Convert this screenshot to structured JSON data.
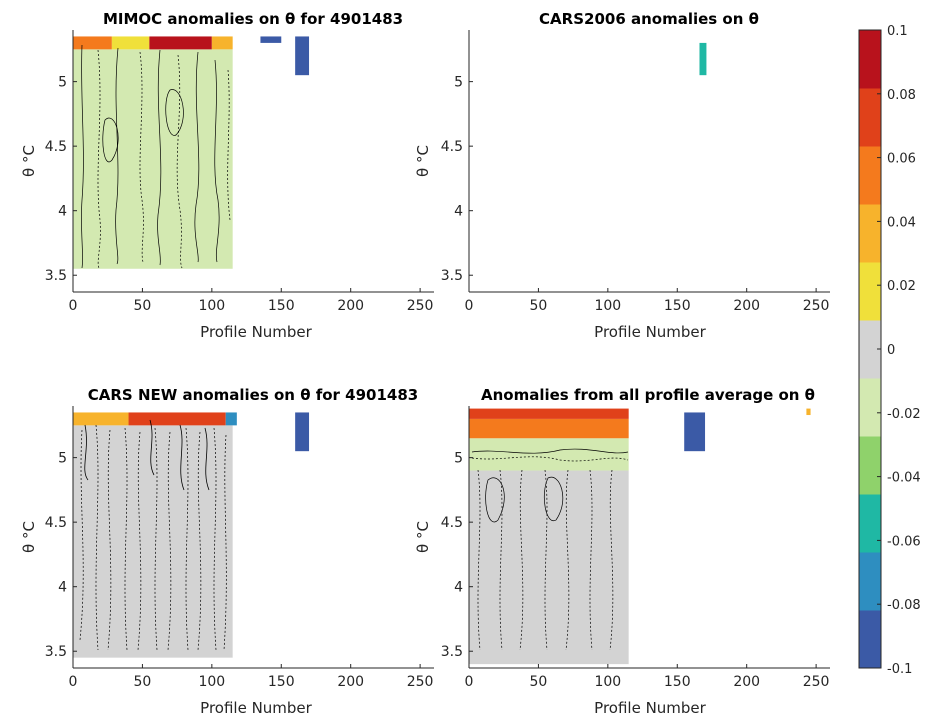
{
  "figure": {
    "panels": [
      {
        "id": "mimoc",
        "title": "MIMOC anomalies on θ  for 4901483",
        "xlabel": "Profile Number",
        "ylabel": "θ °C"
      },
      {
        "id": "cars2006",
        "title": "CARS2006 anomalies on θ",
        "xlabel": "Profile Number",
        "ylabel": "θ °C"
      },
      {
        "id": "carsnew",
        "title": "CARS NEW anomalies on θ for 4901483",
        "xlabel": "Profile Number",
        "ylabel": "θ °C"
      },
      {
        "id": "allavg",
        "title": "Anomalies from all profile average on θ",
        "xlabel": "Profile Number",
        "ylabel": "θ °C"
      }
    ],
    "colorbar": {
      "ticks": [
        "0.1",
        "0.08",
        "0.06",
        "0.04",
        "0.02",
        "0",
        "-0.02",
        "-0.04",
        "-0.06",
        "-0.08",
        "-0.1"
      ],
      "range": [
        -0.1,
        0.1
      ],
      "colors": [
        "#3b5aa6",
        "#2e8ec0",
        "#1fb8a4",
        "#8fd26b",
        "#d3e9b1",
        "#d3d3d3",
        "#f0e03a",
        "#f7b32c",
        "#f47a1d",
        "#e0411a",
        "#b8121c"
      ]
    }
  },
  "chart_data": [
    {
      "type": "heatmap",
      "title": "MIMOC anomalies on θ  for 4901483",
      "xlabel": "Profile Number",
      "ylabel": "θ °C",
      "xlim": [
        0,
        260
      ],
      "ylim": [
        3.37,
        5.4
      ],
      "xticks": [
        0,
        50,
        100,
        150,
        200,
        250
      ],
      "yticks": [
        3.5,
        4,
        4.5,
        5
      ],
      "clim": [
        -0.1,
        0.1
      ],
      "cells": [
        {
          "x": [
            0,
            115
          ],
          "y": [
            3.55,
            5.25
          ],
          "v": -0.012
        },
        {
          "x": [
            0,
            28
          ],
          "y": [
            5.25,
            5.35
          ],
          "v": 0.06
        },
        {
          "x": [
            28,
            55
          ],
          "y": [
            5.25,
            5.35
          ],
          "v": 0.02
        },
        {
          "x": [
            55,
            100
          ],
          "y": [
            5.25,
            5.35
          ],
          "v": 0.085
        },
        {
          "x": [
            100,
            115
          ],
          "y": [
            5.25,
            5.35
          ],
          "v": 0.03
        },
        {
          "x": [
            135,
            150
          ],
          "y": [
            5.3,
            5.35
          ],
          "v": -0.09
        },
        {
          "x": [
            160,
            170
          ],
          "y": [
            5.05,
            5.35
          ],
          "v": -0.09
        }
      ]
    },
    {
      "type": "heatmap",
      "title": "CARS2006 anomalies on θ",
      "xlabel": "Profile Number",
      "ylabel": "θ °C",
      "xlim": [
        0,
        260
      ],
      "ylim": [
        3.37,
        5.4
      ],
      "xticks": [
        0,
        50,
        100,
        150,
        200,
        250
      ],
      "yticks": [
        3.5,
        4,
        4.5,
        5
      ],
      "clim": [
        -0.1,
        0.1
      ],
      "cells": [
        {
          "x": [
            166,
            171
          ],
          "y": [
            5.05,
            5.3
          ],
          "v": -0.05
        }
      ]
    },
    {
      "type": "heatmap",
      "title": "CARS NEW anomalies on θ for 4901483",
      "xlabel": "Profile Number",
      "ylabel": "θ °C",
      "xlim": [
        0,
        260
      ],
      "ylim": [
        3.37,
        5.4
      ],
      "xticks": [
        0,
        50,
        100,
        150,
        200,
        250
      ],
      "yticks": [
        3.5,
        4,
        4.5,
        5
      ],
      "clim": [
        -0.1,
        0.1
      ],
      "cells": [
        {
          "x": [
            0,
            115
          ],
          "y": [
            3.45,
            5.25
          ],
          "v": 0.0
        },
        {
          "x": [
            0,
            40
          ],
          "y": [
            5.25,
            5.35
          ],
          "v": 0.04
        },
        {
          "x": [
            40,
            110
          ],
          "y": [
            5.25,
            5.35
          ],
          "v": 0.08
        },
        {
          "x": [
            110,
            118
          ],
          "y": [
            5.25,
            5.35
          ],
          "v": -0.07
        },
        {
          "x": [
            160,
            170
          ],
          "y": [
            5.05,
            5.35
          ],
          "v": -0.09
        }
      ]
    },
    {
      "type": "heatmap",
      "title": "Anomalies from all profile average on θ",
      "xlabel": "Profile Number",
      "ylabel": "θ °C",
      "xlim": [
        0,
        260
      ],
      "ylim": [
        3.37,
        5.4
      ],
      "xticks": [
        0,
        50,
        100,
        150,
        200,
        250
      ],
      "yticks": [
        3.5,
        4,
        4.5,
        5
      ],
      "clim": [
        -0.1,
        0.1
      ],
      "cells": [
        {
          "x": [
            0,
            115
          ],
          "y": [
            3.4,
            4.9
          ],
          "v": 0.0
        },
        {
          "x": [
            0,
            115
          ],
          "y": [
            4.9,
            5.15
          ],
          "v": -0.015
        },
        {
          "x": [
            0,
            115
          ],
          "y": [
            5.15,
            5.3
          ],
          "v": 0.05
        },
        {
          "x": [
            0,
            115
          ],
          "y": [
            5.3,
            5.38
          ],
          "v": 0.08
        },
        {
          "x": [
            155,
            170
          ],
          "y": [
            5.05,
            5.35
          ],
          "v": -0.09
        },
        {
          "x": [
            243,
            246
          ],
          "y": [
            5.33,
            5.38
          ],
          "v": 0.04
        }
      ]
    }
  ]
}
